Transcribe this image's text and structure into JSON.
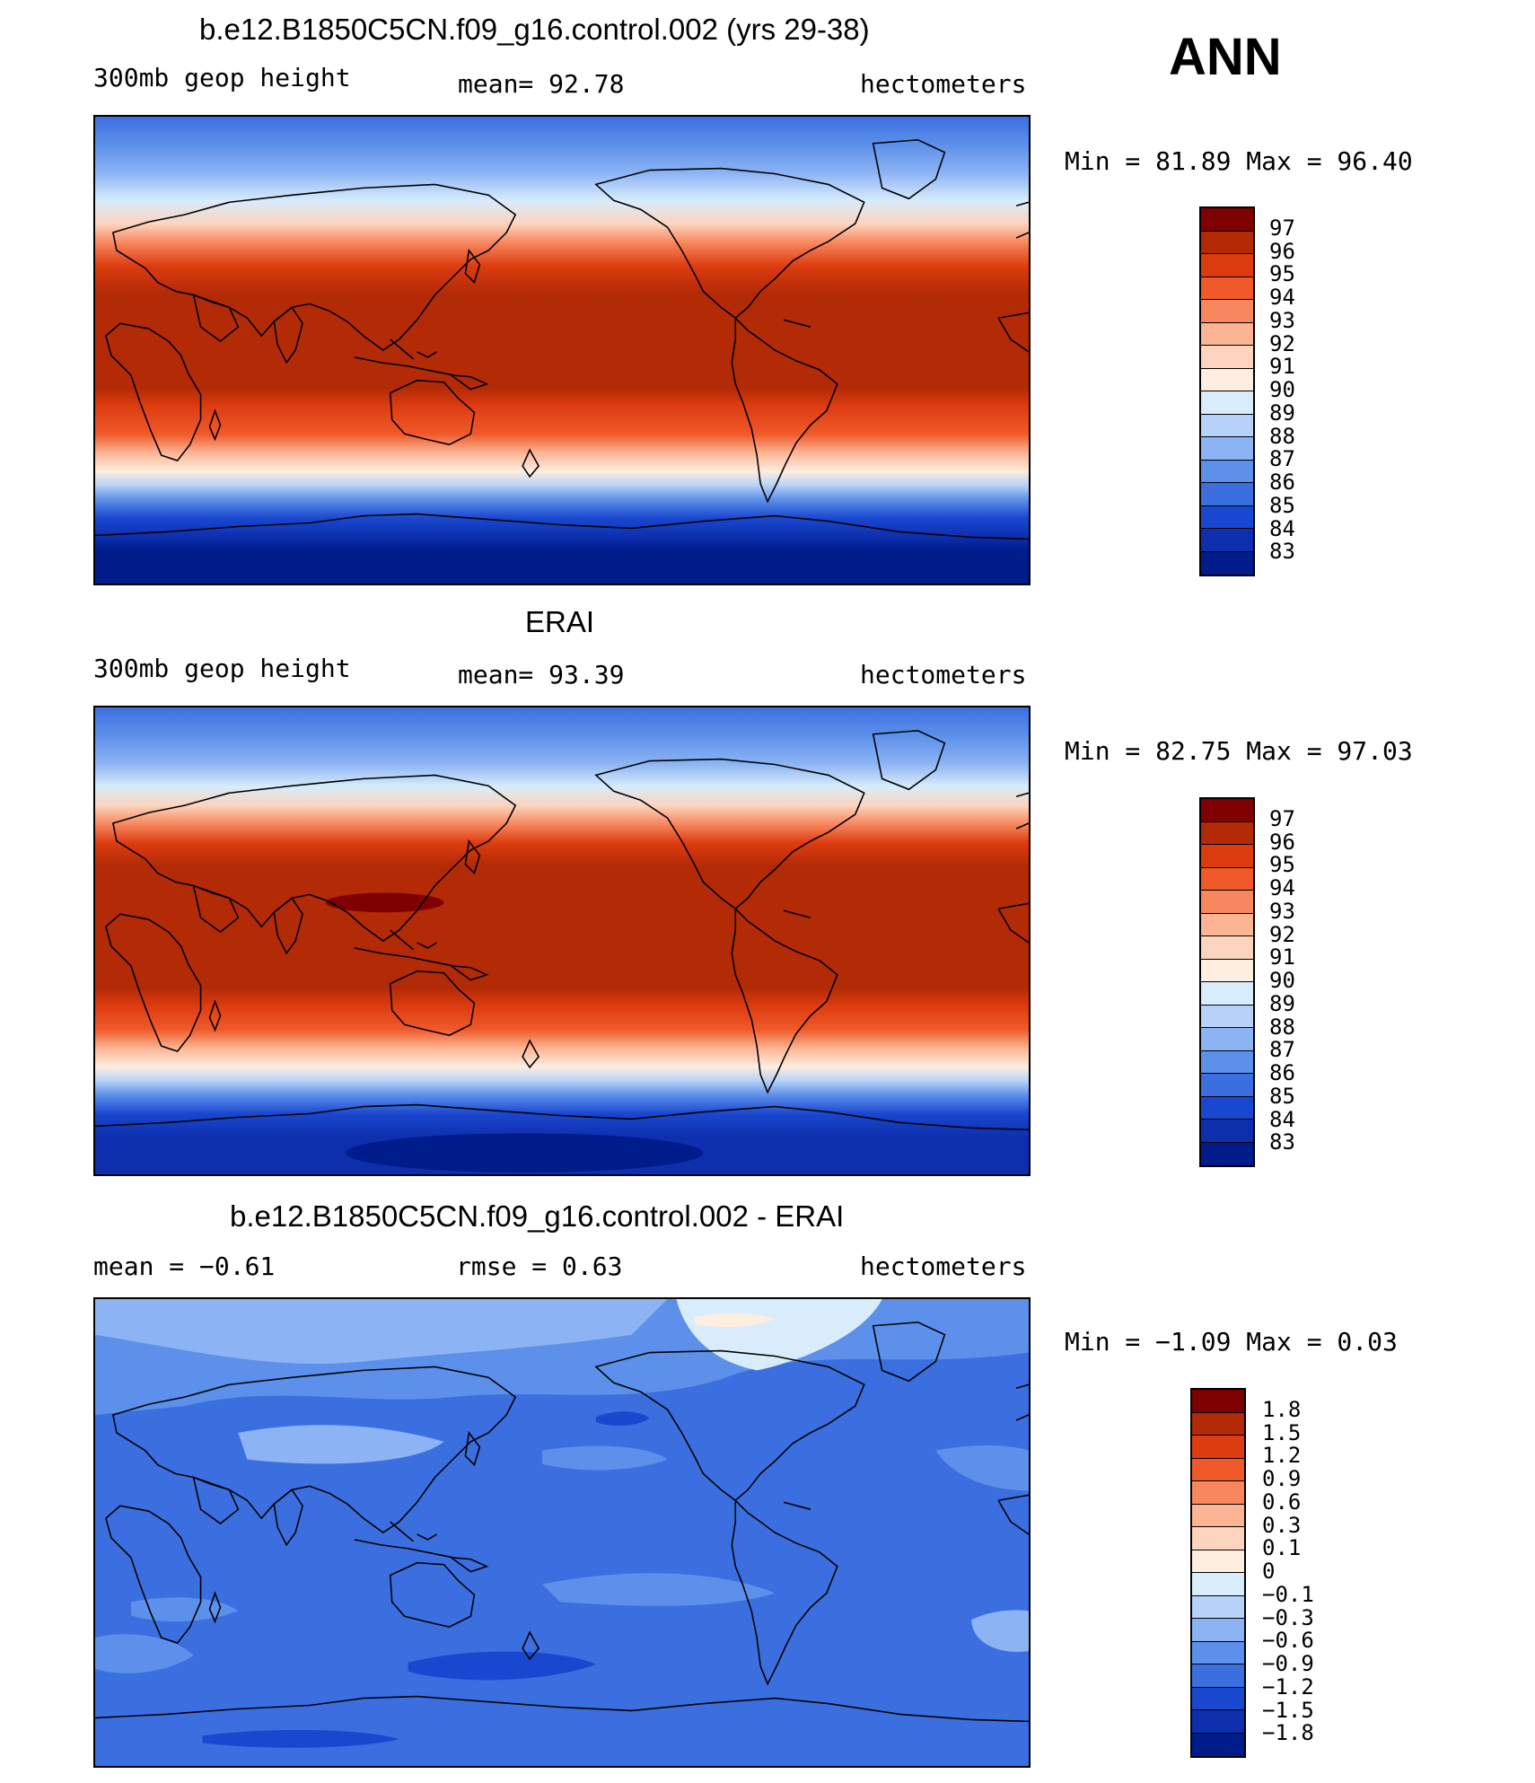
{
  "figure": {
    "season": "ANN"
  },
  "panels": [
    {
      "title": "b.e12.B1850C5CN.f09_g16.control.002 (yrs 29-38)",
      "left_label": "300mb geop height",
      "center_label": "mean=  92.78",
      "right_label": "hectometers",
      "minmax": "Min =  81.89 Max =  96.40",
      "colorbar_labels": [
        "97",
        "96",
        "95",
        "94",
        "93",
        "92",
        "91",
        "90",
        "89",
        "88",
        "87",
        "86",
        "85",
        "84",
        "83"
      ]
    },
    {
      "title": "ERAI",
      "left_label": "300mb geop height",
      "center_label": "mean=  93.39",
      "right_label": "hectometers",
      "minmax": "Min =  82.75 Max =  97.03",
      "colorbar_labels": [
        "97",
        "96",
        "95",
        "94",
        "93",
        "92",
        "91",
        "90",
        "89",
        "88",
        "87",
        "86",
        "85",
        "84",
        "83"
      ]
    },
    {
      "title": "b.e12.B1850C5CN.f09_g16.control.002 - ERAI",
      "left_label": "mean =  −0.61",
      "center_label": "rmse =   0.63",
      "right_label": "hectometers",
      "minmax": "Min =  −1.09 Max =   0.03",
      "colorbar_labels": [
        "1.8",
        "1.5",
        "1.2",
        "0.9",
        "0.6",
        "0.3",
        "0.1",
        "0",
        "−0.1",
        "−0.3",
        "−0.6",
        "−0.9",
        "−1.2",
        "−1.5",
        "−1.8"
      ]
    }
  ],
  "colors": {
    "scale": [
      "#7f0000",
      "#b22a06",
      "#dd3c10",
      "#f05a2a",
      "#f8865e",
      "#fbb594",
      "#fcd4be",
      "#fdeee0",
      "#d9ecfb",
      "#b6d2f8",
      "#8cb3f3",
      "#5d90ea",
      "#3b6fe0",
      "#1a47cf",
      "#0d2fae",
      "#001c8a"
    ],
    "diff_background": "#3b6fe0",
    "coastline": "#000000"
  },
  "chart_data": [
    {
      "type": "heatmap",
      "title": "b.e12.B1850C5CN.f09_g16.control.002 (yrs 29-38)",
      "variable": "300mb geop height",
      "units": "hectometers",
      "mean": 92.78,
      "min": 81.89,
      "max": 96.4,
      "contour_levels": [
        83,
        84,
        85,
        86,
        87,
        88,
        89,
        90,
        91,
        92,
        93,
        94,
        95,
        96,
        97
      ]
    },
    {
      "type": "heatmap",
      "title": "ERAI",
      "variable": "300mb geop height",
      "units": "hectometers",
      "mean": 93.39,
      "min": 82.75,
      "max": 97.03,
      "contour_levels": [
        83,
        84,
        85,
        86,
        87,
        88,
        89,
        90,
        91,
        92,
        93,
        94,
        95,
        96,
        97
      ]
    },
    {
      "type": "heatmap",
      "title": "b.e12.B1850C5CN.f09_g16.control.002 - ERAI",
      "units": "hectometers",
      "mean": -0.61,
      "rmse": 0.63,
      "min": -1.09,
      "max": 0.03,
      "contour_levels": [
        -1.8,
        -1.5,
        -1.2,
        -0.9,
        -0.6,
        -0.3,
        -0.1,
        0,
        0.1,
        0.3,
        0.6,
        0.9,
        1.2,
        1.5,
        1.8
      ]
    }
  ]
}
